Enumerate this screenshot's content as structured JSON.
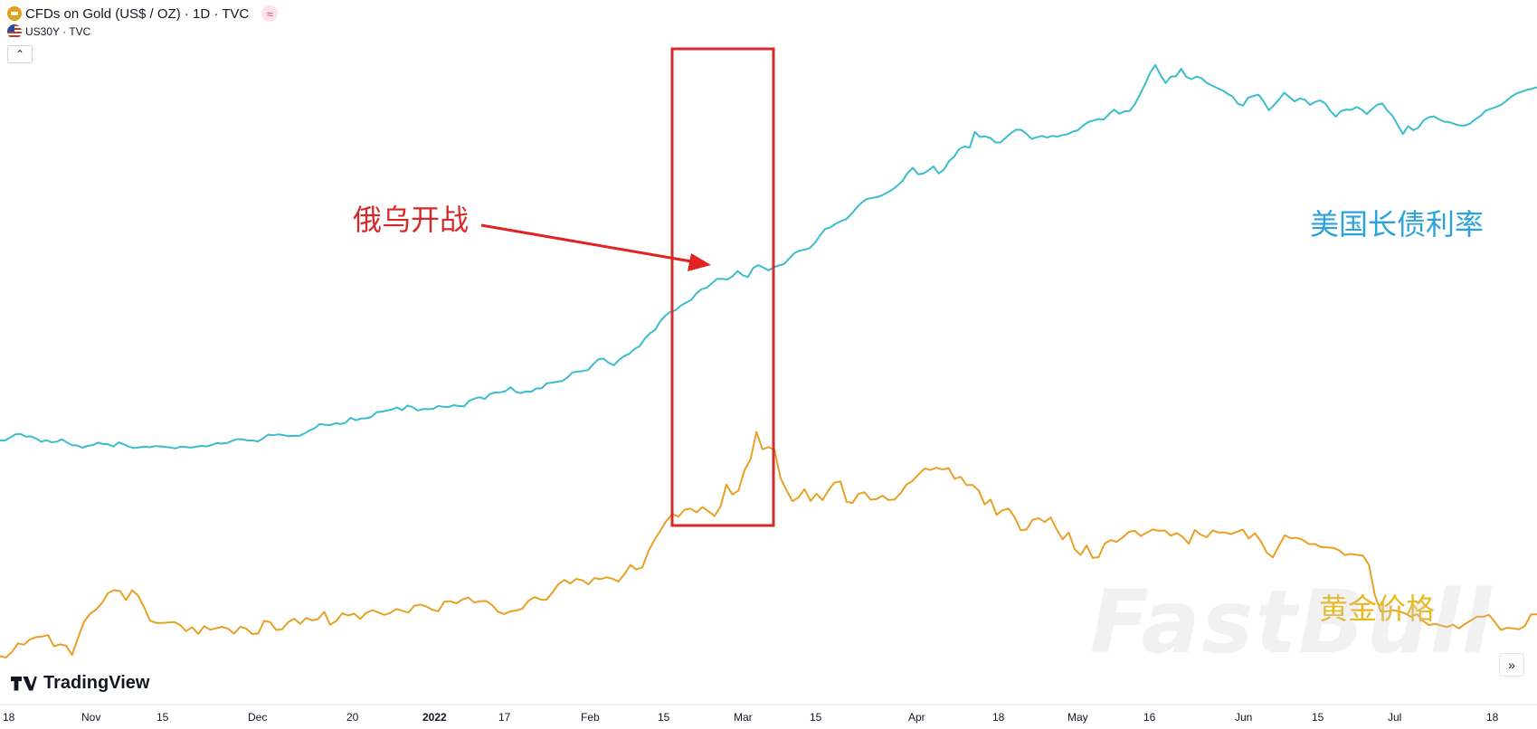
{
  "legend": {
    "main_symbol": "CFDs on Gold (US$ / OZ) · 1D · TVC",
    "sub_symbol": "US30Y · TVC",
    "wave_glyph": "≈",
    "collapse_glyph": "⌃"
  },
  "branding": {
    "logo_text": "TradingView",
    "watermark": "FastBull"
  },
  "controls": {
    "scroll_right_glyph": "»"
  },
  "annotations": {
    "war_label": "俄乌开战",
    "bond_label": "美国长债利率",
    "gold_label": "黄金价格"
  },
  "colors": {
    "gold": "#e8a126",
    "bond": "#3bbdcc",
    "box": "#d62a2a",
    "arrow": "#e32222",
    "war_label": "#d62a2a",
    "bond_label": "#2aa3dc",
    "gold_label": "#e8b820"
  },
  "chart_data": {
    "type": "line",
    "x_axis_ticks": [
      "18",
      "Nov",
      "15",
      "Dec",
      "20",
      "2022",
      "17",
      "Feb",
      "15",
      "Mar",
      "15",
      "Apr",
      "18",
      "May",
      "16",
      "Jun",
      "15",
      "Jul",
      "18"
    ],
    "bold_ticks": [
      "2022"
    ],
    "series": [
      {
        "key": "gold",
        "values": [
          0.188,
          0.176,
          0.224,
          0.296,
          0.284,
          0.329,
          0.348,
          0.354,
          0.365,
          0.271,
          0.287,
          0.276,
          0.198,
          0.342,
          0.478,
          0.546,
          0.581,
          0.637,
          0.721,
          0.745,
          0.737,
          0.66,
          0.744,
          0.7,
          0.6,
          0.487,
          0.468,
          0.468,
          0.471,
          0.476,
          0.451,
          0.399,
          0.432,
          0.374,
          0.44,
          0.41,
          0.423,
          0.435,
          0.419,
          0.377,
          0.436,
          0.421,
          0.375,
          0.378,
          0.486,
          0.474,
          0.409,
          0.414,
          0.476,
          0.504,
          0.46,
          0.511,
          0.489,
          0.5,
          0.562,
          0.453,
          0.485,
          0.549,
          0.532,
          0.546,
          0.502,
          0.552,
          0.576,
          0.557,
          0.536,
          0.552,
          0.586,
          0.571,
          0.555,
          0.613,
          0.623,
          0.607,
          0.58,
          0.567,
          0.648,
          0.651,
          0.633,
          0.665,
          0.683,
          0.641,
          0.652,
          0.653,
          0.617,
          0.561,
          0.543,
          0.566,
          0.573,
          0.589,
          0.653,
          0.687,
          0.667,
          0.663,
          0.724,
          0.795,
          0.831,
          0.801,
          0.84,
          0.828,
          0.794,
          0.847,
          0.837,
          0.853,
          0.842,
          0.817,
          0.88,
          0.957,
          0.919,
          0.938,
          1.075,
          1.169,
          1.248,
          1.331,
          1.388,
          1.366,
          1.424,
          1.434,
          1.402,
          1.447,
          1.411,
          1.371,
          1.45,
          1.637,
          1.552,
          1.586,
          1.759,
          1.849,
          2.082,
          1.934,
          1.953,
          1.93,
          1.693,
          1.588,
          1.497,
          1.527,
          1.598,
          1.498,
          1.559,
          1.505,
          1.59,
          1.654,
          1.663,
          1.491,
          1.481,
          1.56,
          1.571,
          1.509,
          1.514,
          1.543,
          1.506,
          1.51,
          1.564,
          1.637,
          1.668,
          1.723,
          1.772,
          1.76,
          1.779,
          1.763,
          1.776,
          1.685,
          1.703,
          1.632,
          1.634,
          1.587,
          1.469,
          1.51,
          1.381,
          1.42,
          1.433,
          1.361,
          1.251,
          1.259,
          1.34,
          1.352,
          1.32,
          1.359,
          1.257,
          1.173,
          1.232,
          1.09,
          1.042,
          1.123,
          1.017,
          1.024,
          1.139,
          1.167,
          1.153,
          1.191,
          1.237,
          1.247,
          1.202,
          1.231,
          1.257,
          1.246,
          1.249,
          1.205,
          1.227,
          1.195,
          1.136,
          1.253,
          1.213,
          1.192,
          1.25,
          1.231,
          1.233,
          1.218,
          1.238,
          1.256,
          1.181,
          1.225,
          1.158,
          1.062,
          1.022,
          1.118,
          1.208,
          1.184,
          1.187,
          1.169,
          1.134,
          1.134,
          1.11,
          1.106,
          1.102,
          1.083,
          1.042,
          1.051,
          1.043,
          1.037,
          0.958,
          0.701,
          0.564,
          0.566,
          0.575,
          0.565,
          0.549,
          0.52,
          0.542,
          0.485,
          0.451,
          0.46,
          0.448,
          0.433,
          0.453,
          0.422,
          0.459,
          0.49,
          0.521,
          0.52,
          0.536,
          0.475,
          0.409,
          0.427,
          0.422,
          0.414,
          0.443,
          0.54,
          0.541
        ]
      },
      {
        "key": "bond",
        "values": [
          2.008,
          2.01,
          2.035,
          2.06,
          2.064,
          2.042,
          2.044,
          2.025,
          1.998,
          2.011,
          1.994,
          1.998,
          2.019,
          1.992,
          1.969,
          1.967,
          1.948,
          1.963,
          1.97,
          1.991,
          1.979,
          1.976,
          1.958,
          1.993,
          1.977,
          1.957,
          1.945,
          1.951,
          1.957,
          1.952,
          1.962,
          1.959,
          1.955,
          1.95,
          1.942,
          1.957,
          1.953,
          1.949,
          1.956,
          1.963,
          1.959,
          1.97,
          1.987,
          1.982,
          1.988,
          2.006,
          2.02,
          2.019,
          2.009,
          2.01,
          2.001,
          2.027,
          2.059,
          2.053,
          2.061,
          2.054,
          2.045,
          2.049,
          2.048,
          2.068,
          2.094,
          2.112,
          2.147,
          2.142,
          2.138,
          2.155,
          2.148,
          2.159,
          2.201,
          2.18,
          2.194,
          2.196,
          2.208,
          2.247,
          2.253,
          2.262,
          2.271,
          2.288,
          2.265,
          2.304,
          2.29,
          2.262,
          2.275,
          2.273,
          2.276,
          2.301,
          2.293,
          2.292,
          2.307,
          2.299,
          2.297,
          2.344,
          2.363,
          2.374,
          2.36,
          2.402,
          2.414,
          2.416,
          2.425,
          2.458,
          2.421,
          2.409,
          2.423,
          2.421,
          2.448,
          2.448,
          2.491,
          2.498,
          2.505,
          2.511,
          2.54,
          2.584,
          2.59,
          2.596,
          2.603,
          2.653,
          2.694,
          2.7,
          2.665,
          2.644,
          2.69,
          2.721,
          2.741,
          2.781,
          2.806,
          2.868,
          2.914,
          2.942,
          3.015,
          3.064,
          3.096,
          3.11,
          3.148,
          3.173,
          3.196,
          3.25,
          3.286,
          3.299,
          3.335,
          3.373,
          3.374,
          3.369,
          3.395,
          3.44,
          3.405,
          3.389,
          3.464,
          3.49,
          3.47,
          3.445,
          3.472,
          3.487,
          3.499,
          3.545,
          3.591,
          3.612,
          3.62,
          3.634,
          3.679,
          3.741,
          3.796,
          3.809,
          3.839,
          3.861,
          3.876,
          3.918,
          3.971,
          4.015,
          4.047,
          4.057,
          4.064,
          4.079,
          4.102,
          4.127,
          4.161,
          4.202,
          4.269,
          4.312,
          4.258,
          4.263,
          4.29,
          4.324,
          4.264,
          4.296,
          4.367,
          4.406,
          4.472,
          4.492,
          4.483,
          4.615,
          4.572,
          4.577,
          4.564,
          4.526,
          4.527,
          4.566,
          4.605,
          4.634,
          4.632,
          4.599,
          4.556,
          4.57,
          4.581,
          4.567,
          4.582,
          4.576,
          4.589,
          4.596,
          4.618,
          4.629,
          4.67,
          4.698,
          4.712,
          4.725,
          4.719,
          4.764,
          4.803,
          4.769,
          4.788,
          4.791,
          4.847,
          4.93,
          5.017,
          5.114,
          5.181,
          5.094,
          5.028,
          5.082,
          5.085,
          5.148,
          5.081,
          5.06,
          5.083,
          5.068,
          5.029,
          5.007,
          4.985,
          4.967,
          4.938,
          4.913,
          4.853,
          4.837,
          4.904,
          4.918,
          4.93,
          4.873,
          4.798,
          4.841,
          4.89,
          4.946,
          4.91,
          4.873,
          4.897,
          4.887,
          4.844,
          4.868,
          4.882,
          4.853,
          4.789,
          4.744,
          4.792,
          4.804,
          4.801,
          4.826,
          4.803,
          4.766,
          4.808,
          4.844,
          4.855,
          4.794,
          4.751,
          4.672,
          4.597,
          4.663,
          4.63,
          4.651,
          4.712,
          4.739,
          4.747,
          4.721,
          4.702,
          4.698,
          4.682,
          4.67,
          4.669,
          4.684,
          4.72,
          4.749,
          4.792,
          4.81,
          4.825,
          4.844,
          4.875,
          4.912,
          4.939,
          4.954,
          4.97,
          4.98,
          4.992
        ]
      }
    ],
    "rising_window_start_index": 112,
    "rising_window_end_index": 132
  }
}
